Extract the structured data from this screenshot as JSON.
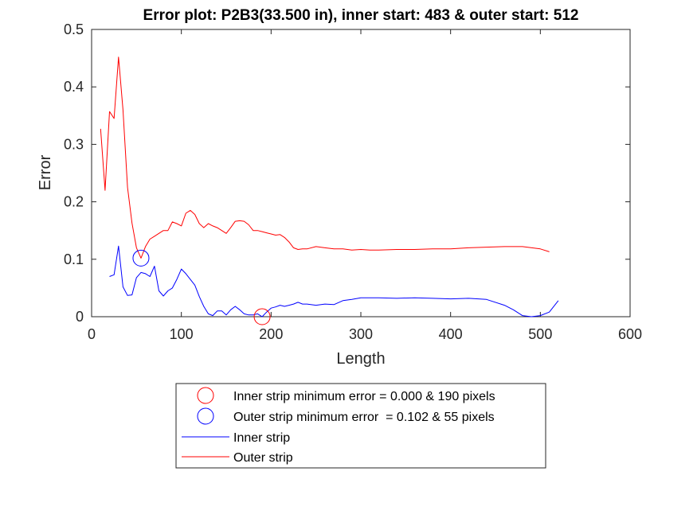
{
  "chart_data": {
    "type": "line",
    "title": "Error plot: P2B3(33.500 in), inner start: 483 & outer start: 512",
    "xlabel": "Length",
    "ylabel": "Error",
    "xlim": [
      0,
      600
    ],
    "ylim": [
      0,
      0.5
    ],
    "xticks": [
      "0",
      "100",
      "200",
      "300",
      "400",
      "500",
      "600"
    ],
    "yticks": [
      "0",
      "0.1",
      "0.2",
      "0.3",
      "0.4",
      "0.5"
    ],
    "grid": false,
    "legend_position": "bottom-outside",
    "series": [
      {
        "name": "Inner strip",
        "color": "#0000ff",
        "x": [
          20,
          25,
          30,
          35,
          40,
          45,
          50,
          55,
          60,
          65,
          70,
          75,
          80,
          85,
          90,
          95,
          100,
          105,
          110,
          115,
          120,
          125,
          130,
          135,
          140,
          145,
          150,
          155,
          160,
          165,
          170,
          175,
          180,
          185,
          190,
          195,
          200,
          205,
          210,
          215,
          220,
          225,
          230,
          235,
          240,
          250,
          260,
          270,
          280,
          290,
          300,
          320,
          340,
          360,
          380,
          400,
          420,
          440,
          460,
          470,
          480,
          490,
          500,
          510,
          520
        ],
        "y": [
          0.07,
          0.073,
          0.123,
          0.052,
          0.037,
          0.038,
          0.068,
          0.077,
          0.075,
          0.07,
          0.088,
          0.045,
          0.036,
          0.045,
          0.05,
          0.065,
          0.083,
          0.075,
          0.065,
          0.055,
          0.035,
          0.018,
          0.005,
          0.002,
          0.01,
          0.01,
          0.003,
          0.012,
          0.018,
          0.012,
          0.005,
          0.003,
          0.003,
          0.005,
          0.0,
          0.008,
          0.015,
          0.017,
          0.02,
          0.018,
          0.02,
          0.022,
          0.025,
          0.022,
          0.022,
          0.02,
          0.022,
          0.021,
          0.028,
          0.03,
          0.033,
          0.033,
          0.032,
          0.033,
          0.032,
          0.031,
          0.032,
          0.03,
          0.02,
          0.012,
          0.002,
          0.0,
          0.002,
          0.008,
          0.028
        ]
      },
      {
        "name": "Outer strip",
        "color": "#ff0000",
        "x": [
          10,
          15,
          20,
          25,
          30,
          35,
          40,
          45,
          50,
          55,
          60,
          65,
          70,
          75,
          80,
          85,
          90,
          95,
          100,
          105,
          110,
          115,
          120,
          125,
          130,
          135,
          140,
          145,
          150,
          155,
          160,
          165,
          170,
          175,
          180,
          185,
          190,
          195,
          200,
          205,
          210,
          215,
          220,
          225,
          230,
          235,
          240,
          250,
          260,
          270,
          280,
          290,
          300,
          310,
          320,
          340,
          360,
          380,
          400,
          420,
          440,
          460,
          480,
          500,
          510
        ],
        "y": [
          0.327,
          0.22,
          0.357,
          0.345,
          0.452,
          0.36,
          0.225,
          0.163,
          0.12,
          0.102,
          0.122,
          0.135,
          0.14,
          0.145,
          0.15,
          0.15,
          0.165,
          0.162,
          0.158,
          0.18,
          0.185,
          0.178,
          0.162,
          0.155,
          0.162,
          0.158,
          0.155,
          0.15,
          0.145,
          0.155,
          0.166,
          0.167,
          0.166,
          0.16,
          0.15,
          0.15,
          0.148,
          0.146,
          0.144,
          0.142,
          0.143,
          0.138,
          0.13,
          0.12,
          0.117,
          0.118,
          0.118,
          0.122,
          0.12,
          0.118,
          0.118,
          0.116,
          0.117,
          0.116,
          0.116,
          0.117,
          0.117,
          0.118,
          0.118,
          0.12,
          0.121,
          0.122,
          0.122,
          0.118,
          0.113
        ]
      }
    ],
    "markers": [
      {
        "name": "Inner strip minimum error = 0.000 & 190 pixels",
        "x": 190,
        "y": 0.0,
        "color": "#ff0000"
      },
      {
        "name": "Outer strip minimum error  = 0.102 & 55 pixels",
        "x": 55,
        "y": 0.102,
        "color": "#0000ff"
      }
    ],
    "legend": [
      {
        "label": "Inner strip minimum error = 0.000 & 190 pixels",
        "kind": "circle",
        "color": "#ff0000"
      },
      {
        "label": "Outer strip minimum error  = 0.102 & 55 pixels",
        "kind": "circle",
        "color": "#0000ff"
      },
      {
        "label": "Inner strip",
        "kind": "line",
        "color": "#0000ff"
      },
      {
        "label": "Outer strip",
        "kind": "line",
        "color": "#ff0000"
      }
    ]
  }
}
